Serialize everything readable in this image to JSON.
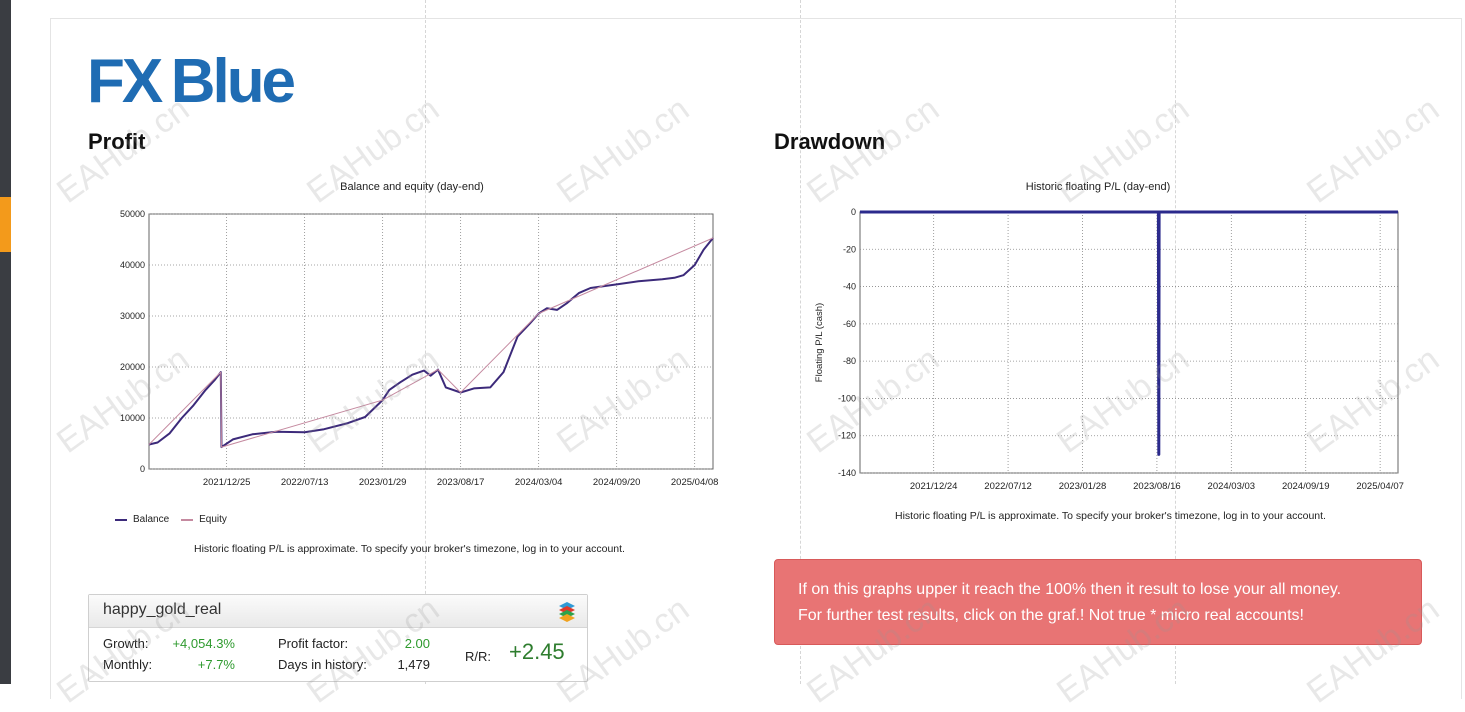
{
  "logo": {
    "part1": "FX",
    "part2": "Blue"
  },
  "watermark": "EAHub.cn",
  "profit": {
    "title": "Profit",
    "chart_title": "Balance and equity (day-end)",
    "note": "Historic floating P/L is approximate. To specify your broker's timezone, log in to your account.",
    "legend": {
      "balance": "Balance",
      "equity": "Equity"
    }
  },
  "drawdown": {
    "title": "Drawdown",
    "chart_title": "Historic floating P/L (day-end)",
    "note": "Historic floating P/L is approximate. To specify your broker's timezone, log in to your account."
  },
  "account": {
    "name": "happy_gold_real",
    "growth_label": "Growth:",
    "growth_value": "+4,054.3%",
    "monthly_label": "Monthly:",
    "monthly_value": "+7.7%",
    "pf_label": "Profit factor:",
    "pf_value": "2.00",
    "days_label": "Days in history:",
    "days_value": "1,479",
    "rr_label": "R/R:",
    "rr_value": "+2.45"
  },
  "alert": {
    "line1": "If on this graphs upper it reach the 100% then it result to lose your all money.",
    "line2": "For further test results, click on the graf.! Not true * micro real accounts!"
  },
  "colors": {
    "balance": "#3c2a7a",
    "equity": "#c58aa0",
    "drawdown": "#2b2a8c",
    "alert_bg": "#e87474",
    "logo": "#1f6cb3"
  },
  "chart_data": [
    {
      "type": "line",
      "title": "Balance and equity (day-end)",
      "xlabel": "",
      "ylabel": "",
      "ylim": [
        0,
        50000
      ],
      "yticks": [
        0,
        10000,
        20000,
        30000,
        40000,
        50000
      ],
      "xticks": [
        "2021/12/25",
        "2022/07/13",
        "2023/01/29",
        "2023/08/17",
        "2024/03/04",
        "2024/09/20",
        "2025/04/08"
      ],
      "grid": true,
      "legend": "bottom-left",
      "series": [
        {
          "name": "Balance",
          "points": [
            [
              "2021/06/09",
              4800
            ],
            [
              "2021/07/01",
              5200
            ],
            [
              "2021/08/01",
              7000
            ],
            [
              "2021/09/01",
              10000
            ],
            [
              "2021/10/01",
              12500
            ],
            [
              "2021/11/01",
              15500
            ],
            [
              "2021/11/25",
              17500
            ],
            [
              "2021/12/10",
              19000
            ],
            [
              "2021/12/12",
              4300
            ],
            [
              "2022/01/10",
              5800
            ],
            [
              "2022/03/01",
              6800
            ],
            [
              "2022/05/01",
              7300
            ],
            [
              "2022/07/13",
              7200
            ],
            [
              "2022/09/01",
              7800
            ],
            [
              "2022/11/01",
              9000
            ],
            [
              "2022/12/15",
              10200
            ],
            [
              "2023/01/29",
              13500
            ],
            [
              "2023/02/15",
              15500
            ],
            [
              "2023/03/15",
              17000
            ],
            [
              "2023/04/15",
              18500
            ],
            [
              "2023/05/15",
              19300
            ],
            [
              "2023/06/01",
              18300
            ],
            [
              "2023/06/20",
              19500
            ],
            [
              "2023/07/10",
              16000
            ],
            [
              "2023/08/17",
              15000
            ],
            [
              "2023/09/20",
              15800
            ],
            [
              "2023/11/01",
              16000
            ],
            [
              "2023/12/05",
              19000
            ],
            [
              "2024/01/10",
              26000
            ],
            [
              "2024/02/10",
              28500
            ],
            [
              "2024/03/04",
              30500
            ],
            [
              "2024/03/25",
              31500
            ],
            [
              "2024/04/20",
              31200
            ],
            [
              "2024/05/15",
              32500
            ],
            [
              "2024/06/15",
              34500
            ],
            [
              "2024/07/15",
              35500
            ],
            [
              "2024/09/20",
              36200
            ],
            [
              "2024/11/15",
              36800
            ],
            [
              "2025/01/15",
              37200
            ],
            [
              "2025/02/15",
              37500
            ],
            [
              "2025/03/10",
              38000
            ],
            [
              "2025/04/08",
              40000
            ],
            [
              "2025/05/01",
              43000
            ],
            [
              "2025/05/25",
              45300
            ]
          ]
        },
        {
          "name": "Equity",
          "points": [
            [
              "2021/06/09",
              4800
            ],
            [
              "2021/12/10",
              19000
            ],
            [
              "2021/12/12",
              4300
            ],
            [
              "2023/01/29",
              13500
            ],
            [
              "2023/06/20",
              19500
            ],
            [
              "2023/08/17",
              15000
            ],
            [
              "2024/03/04",
              30500
            ],
            [
              "2025/05/25",
              45300
            ]
          ]
        }
      ]
    },
    {
      "type": "line",
      "title": "Historic floating P/L (day-end)",
      "xlabel": "",
      "ylabel": "Floating P/L (cash)",
      "ylim": [
        -140,
        0
      ],
      "yticks": [
        0,
        -20,
        -40,
        -60,
        -80,
        -100,
        -120,
        -140
      ],
      "xticks": [
        "2021/12/24",
        "2022/07/12",
        "2023/01/28",
        "2023/08/16",
        "2024/03/03",
        "2024/09/19",
        "2025/04/07"
      ],
      "grid": true,
      "series": [
        {
          "name": "",
          "points": [
            [
              "2021/06/09",
              0
            ],
            [
              "2023/08/20",
              0
            ],
            [
              "2023/08/21",
              -130
            ],
            [
              "2023/08/22",
              0
            ],
            [
              "2025/05/25",
              0
            ]
          ]
        }
      ]
    }
  ]
}
